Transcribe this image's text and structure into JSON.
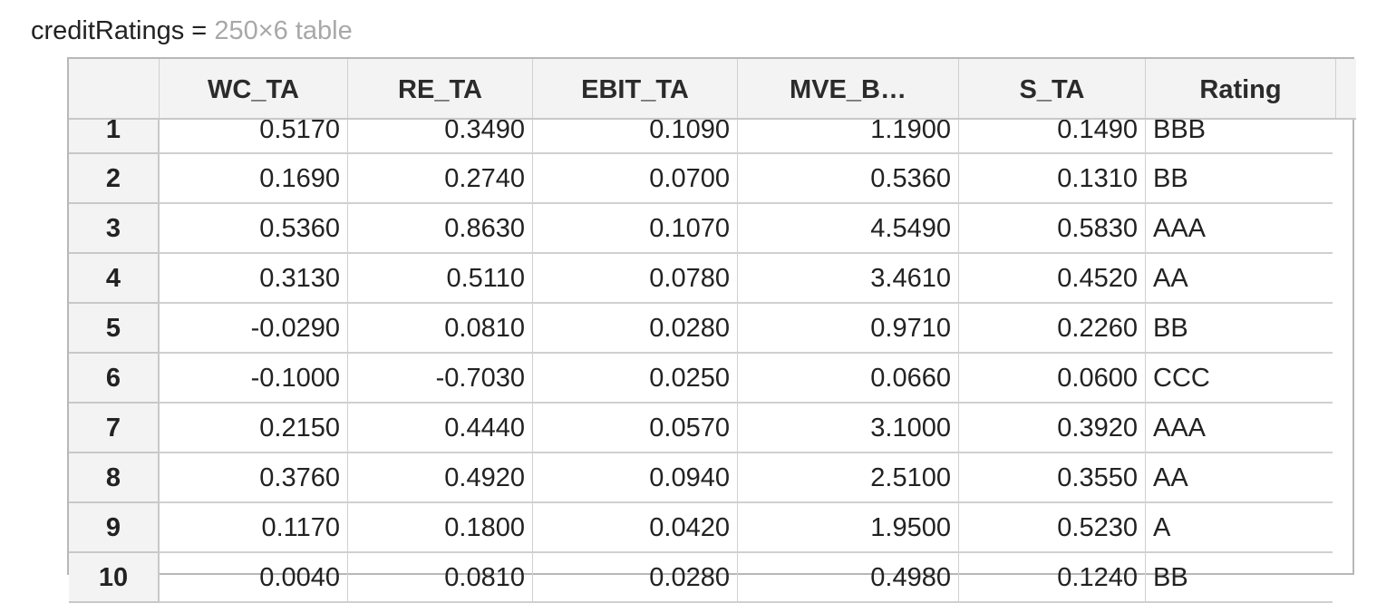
{
  "variable": {
    "name": "creditRatings",
    "equals": " = ",
    "description": "250×6 table"
  },
  "table": {
    "columns": [
      "WC_TA",
      "RE_TA",
      "EBIT_TA",
      "MVE_B…",
      "S_TA",
      "Rating"
    ],
    "rows": [
      {
        "index": "1",
        "values": [
          "0.5170",
          "0.3490",
          "0.1090",
          "1.1900",
          "0.1490"
        ],
        "rating": "BBB"
      },
      {
        "index": "2",
        "values": [
          "0.1690",
          "0.2740",
          "0.0700",
          "0.5360",
          "0.1310"
        ],
        "rating": "BB"
      },
      {
        "index": "3",
        "values": [
          "0.5360",
          "0.8630",
          "0.1070",
          "4.5490",
          "0.5830"
        ],
        "rating": "AAA"
      },
      {
        "index": "4",
        "values": [
          "0.3130",
          "0.5110",
          "0.0780",
          "3.4610",
          "0.4520"
        ],
        "rating": "AA"
      },
      {
        "index": "5",
        "values": [
          "-0.0290",
          "0.0810",
          "0.0280",
          "0.9710",
          "0.2260"
        ],
        "rating": "BB"
      },
      {
        "index": "6",
        "values": [
          "-0.1000",
          "-0.7030",
          "0.0250",
          "0.0660",
          "0.0600"
        ],
        "rating": "CCC"
      },
      {
        "index": "7",
        "values": [
          "0.2150",
          "0.4440",
          "0.0570",
          "3.1000",
          "0.3920"
        ],
        "rating": "AAA"
      },
      {
        "index": "8",
        "values": [
          "0.3760",
          "0.4920",
          "0.0940",
          "2.5100",
          "0.3550"
        ],
        "rating": "AA"
      },
      {
        "index": "9",
        "values": [
          "0.1170",
          "0.1800",
          "0.0420",
          "1.9500",
          "0.5230"
        ],
        "rating": "A"
      },
      {
        "index": "10",
        "values": [
          "0.0040",
          "0.0810",
          "0.0280",
          "0.4980",
          "0.1240"
        ],
        "rating": "BB"
      }
    ]
  }
}
